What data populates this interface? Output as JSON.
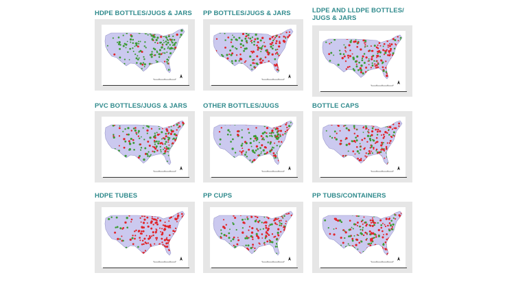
{
  "colors": {
    "title": "#2f8a8c",
    "frame": "#e6e6e6",
    "land": "#cbc9ef",
    "land_edge": "#9a98c9",
    "green": "#3d9b35",
    "red": "#e0252b"
  },
  "maps": [
    {
      "title": "HDPE BOTTLES/JUGS & JARS",
      "red_share": 0.1
    },
    {
      "title": "PP BOTTLES/JUGS & JARS",
      "red_share": 0.55
    },
    {
      "title": "LDPE AND LLDPE BOTTLES/ JUGS & JARS",
      "red_share": 0.6
    },
    {
      "title": "PVC BOTTLES/JUGS & JARS",
      "red_share": 0.35
    },
    {
      "title": "OTHER BOTTLES/JUGS",
      "red_share": 0.4
    },
    {
      "title": "BOTTLE CAPS",
      "red_share": 0.55
    },
    {
      "title": "HDPE TUBES",
      "red_share": 0.95
    },
    {
      "title": "PP CUPS",
      "red_share": 0.55
    },
    {
      "title": "PP TUBS/CONTAINERS",
      "red_share": 0.6
    }
  ]
}
